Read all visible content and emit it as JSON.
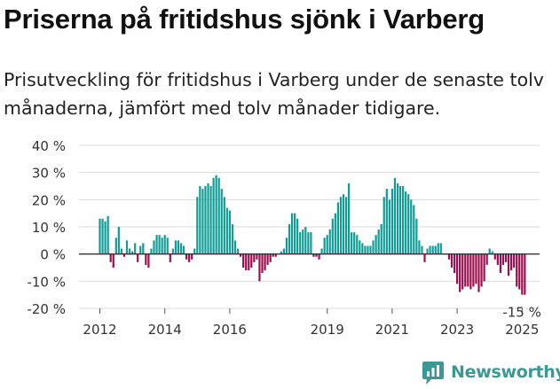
{
  "title": "Priserna på fritidshus sjönk i Varberg",
  "subtitle": "Prisutveckling för fritidshus i Varberg under de senaste tolv månaderna, jämfört med tolv månader tidigare.",
  "brand": {
    "name": "Newsworthy",
    "icon": "newsworthy-logo-icon",
    "color": "#3a9a93"
  },
  "colors": {
    "positive": "#0f9d95",
    "negative": "#9c0f4e",
    "gridline": "#d9d9d9",
    "baseline": "#333333"
  },
  "chart_data": {
    "type": "bar",
    "ylim": [
      -20,
      40
    ],
    "yticks": [
      40,
      30,
      20,
      10,
      0,
      -10,
      -20
    ],
    "ytick_labels": [
      "40 %",
      "30 %",
      "20 %",
      "10 %",
      "0 %",
      "-10 %",
      "-20 %"
    ],
    "xticks": [
      {
        "year": 2012,
        "label": "2012"
      },
      {
        "year": 2014,
        "label": "2014"
      },
      {
        "year": 2016,
        "label": "2016"
      },
      {
        "year": 2019,
        "label": "2019"
      },
      {
        "year": 2021,
        "label": "2021"
      },
      {
        "year": 2023,
        "label": "2023"
      },
      {
        "year": 2025,
        "label": "2025"
      }
    ],
    "grid": true,
    "last_value_label": "-15 %",
    "x_start": "2012-01",
    "series": [
      {
        "values": [
          13,
          13,
          12,
          14,
          -3,
          -5,
          6,
          10,
          2,
          -1,
          5,
          2,
          1,
          4,
          -3,
          3,
          4,
          -4,
          -5,
          2,
          5,
          7,
          7,
          6,
          7,
          6,
          -3,
          2,
          5,
          5,
          4,
          3,
          -2,
          -3,
          -2,
          2,
          21,
          25,
          24,
          25,
          26,
          25,
          28,
          29,
          28,
          24,
          21,
          17,
          16,
          11,
          5,
          2,
          -1,
          -5,
          -6,
          -6,
          -5,
          -3,
          -2,
          -10,
          -7,
          -6,
          -4,
          -3,
          -1,
          -1,
          0,
          1,
          2,
          6,
          11,
          15,
          15,
          13,
          8,
          9,
          10,
          8,
          8,
          -1,
          -1,
          -2,
          2,
          6,
          7,
          9,
          13,
          15,
          19,
          21,
          22,
          21,
          26,
          8,
          8,
          7,
          5,
          4,
          3,
          3,
          3,
          5,
          7,
          9,
          11,
          21,
          24,
          20,
          24,
          28,
          26,
          25,
          25,
          23,
          22,
          20,
          18,
          13,
          5,
          3,
          -3,
          2,
          3,
          3,
          3,
          4,
          4,
          0,
          0,
          -2,
          -5,
          -7,
          -11,
          -14,
          -13,
          -12,
          -12,
          -13,
          -12,
          -11,
          -14,
          -12,
          -10,
          -4,
          2,
          1,
          -2,
          -4,
          -7,
          -4,
          -3,
          -8,
          -6,
          -5,
          -12,
          -13,
          -15,
          -15
        ]
      }
    ]
  }
}
